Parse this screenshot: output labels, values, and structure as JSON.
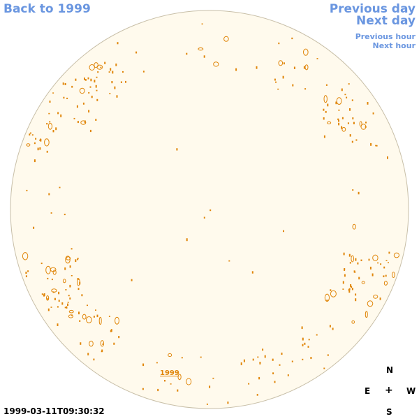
{
  "nav": {
    "back_label": "Back to 1999",
    "previous_day_label": "Previous day",
    "next_day_label": "Next day",
    "previous_hour_label": "Previous hour",
    "next_hour_label": "Next hour"
  },
  "compass": {
    "north": "N",
    "east": "E",
    "center": "+",
    "west": "W",
    "south": "S"
  },
  "timestamp": "1999-03-11T09:30:32",
  "year_link_label": "1999",
  "colors": {
    "link": "#6a96e0",
    "disk_fill": "#fffaed",
    "disk_edge": "#c8bfa8",
    "feature": "#e0860a"
  }
}
